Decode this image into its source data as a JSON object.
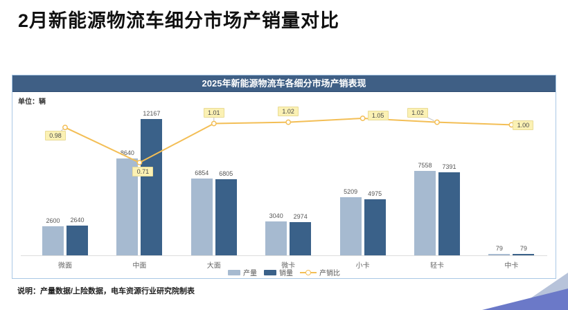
{
  "page": {
    "title": "2月新能源物流车细分市场产销量对比",
    "footer_note": "说明：产量数据/上险数据，电车资源行业研究院制表"
  },
  "chart": {
    "header": "2025年新能源物流车各细分市场产销表现",
    "unit_label": "单位：辆"
  },
  "colors": {
    "header_bg": "#3f5f85",
    "production_bar": "#a6bad0",
    "sales_bar": "#3a6189",
    "ratio_line": "#f3be55",
    "ratio_label_bg": "#fbf1b4",
    "corner_light": "#b7c3da",
    "corner_dark": "#6b79c8"
  },
  "chart_data": {
    "type": "bar",
    "subtype": "grouped-bar-with-line",
    "title": "2025年新能源物流车各细分市场产销表现",
    "unit": "辆",
    "categories": [
      "微面",
      "中面",
      "大面",
      "微卡",
      "小卡",
      "轻卡",
      "中卡"
    ],
    "series": [
      {
        "name": "产量",
        "type": "bar",
        "values": [
          2600,
          8640,
          6854,
          3040,
          5209,
          7558,
          79
        ]
      },
      {
        "name": "销量",
        "type": "bar",
        "values": [
          2640,
          12167,
          6805,
          2974,
          4975,
          7391,
          79
        ]
      },
      {
        "name": "产销比",
        "type": "line",
        "values": [
          0.98,
          0.71,
          1.01,
          1.02,
          1.05,
          1.02,
          1.0
        ],
        "labels": [
          "0.98",
          "0.71",
          "1.01",
          "1.02",
          "1.05",
          "1.02",
          "1.00"
        ]
      }
    ],
    "legend_position": "bottom",
    "grid": false,
    "bar_ylim": [
      0,
      13500
    ],
    "line_ylim": [
      0,
      1.25
    ]
  }
}
